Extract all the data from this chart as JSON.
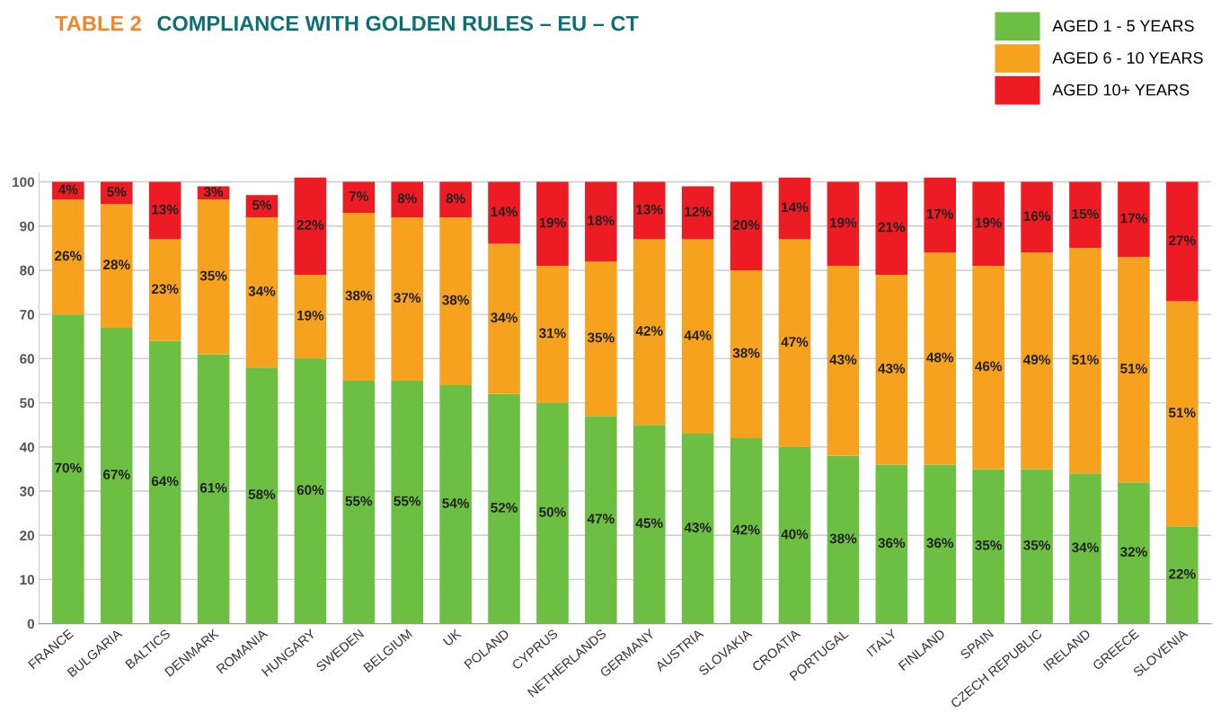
{
  "chart_data": {
    "type": "bar",
    "stacked": true,
    "title": "TABLE 2",
    "subtitle": "COMPLIANCE WITH GOLDEN RULES – EU – CT",
    "categories": [
      "FRANCE",
      "BULGARIA",
      "BALTICS",
      "DENMARK",
      "ROMANIA",
      "HUNGARY",
      "SWEDEN",
      "BELGIUM",
      "UK",
      "POLAND",
      "CYPRUS",
      "NETHERLANDS",
      "GERMANY",
      "AUSTRIA",
      "SLOVAKIA",
      "CROATIA",
      "PORTUGAL",
      "ITALY",
      "FINLAND",
      "SPAIN",
      "CZECH REPUBLIC",
      "IRELAND",
      "GREECE",
      "SLOVENIA"
    ],
    "series": [
      {
        "name": "AGED 1 - 5 YEARS",
        "color": "#6dbf44",
        "values": [
          70,
          67,
          64,
          61,
          58,
          60,
          55,
          55,
          54,
          52,
          50,
          47,
          45,
          43,
          42,
          40,
          38,
          36,
          36,
          35,
          35,
          34,
          32,
          22
        ],
        "value_labels": [
          "70%",
          "67%",
          "64%",
          "61%",
          "58%",
          "60%",
          "55%",
          "55%",
          "54%",
          "52%",
          "50%",
          "47%",
          "45%",
          "43%",
          "42%",
          "40%",
          "38%",
          "36%",
          "36%",
          "35%",
          "35%",
          "34%",
          "32%",
          "22%"
        ]
      },
      {
        "name": "AGED 6 - 10 YEARS",
        "color": "#f6a21e",
        "values": [
          26,
          28,
          23,
          35,
          34,
          19,
          38,
          37,
          38,
          34,
          31,
          35,
          42,
          44,
          38,
          47,
          43,
          43,
          48,
          46,
          49,
          51,
          51,
          51
        ],
        "value_labels": [
          "26%",
          "28%",
          "23%",
          "35%",
          "34%",
          "19%",
          "38%",
          "37%",
          "38%",
          "34%",
          "31%",
          "35%",
          "42%",
          "44%",
          "38%",
          "47%",
          "43%",
          "43%",
          "48%",
          "46%",
          "49%",
          "51%",
          "51%",
          "51%"
        ]
      },
      {
        "name": "AGED 10+ YEARS",
        "color": "#ed1c24",
        "values": [
          4,
          5,
          13,
          3,
          5,
          22,
          7,
          8,
          8,
          14,
          19,
          18,
          13,
          12,
          20,
          14,
          19,
          21,
          17,
          19,
          16,
          15,
          17,
          27
        ],
        "value_labels": [
          "4%",
          "5%",
          "13%",
          "3%",
          "5%",
          "22%",
          "7%",
          "8%",
          "8%",
          "14%",
          "19%",
          "18%",
          "13%",
          "12%",
          "20%",
          "14%",
          "19%",
          "21%",
          "17%",
          "19%",
          "16%",
          "15%",
          "17%",
          "27%"
        ]
      }
    ],
    "ylim": [
      0,
      102
    ],
    "yticks": [
      0,
      10,
      20,
      30,
      40,
      50,
      60,
      70,
      80,
      90,
      100
    ],
    "grid": "y",
    "legend": "top right"
  }
}
